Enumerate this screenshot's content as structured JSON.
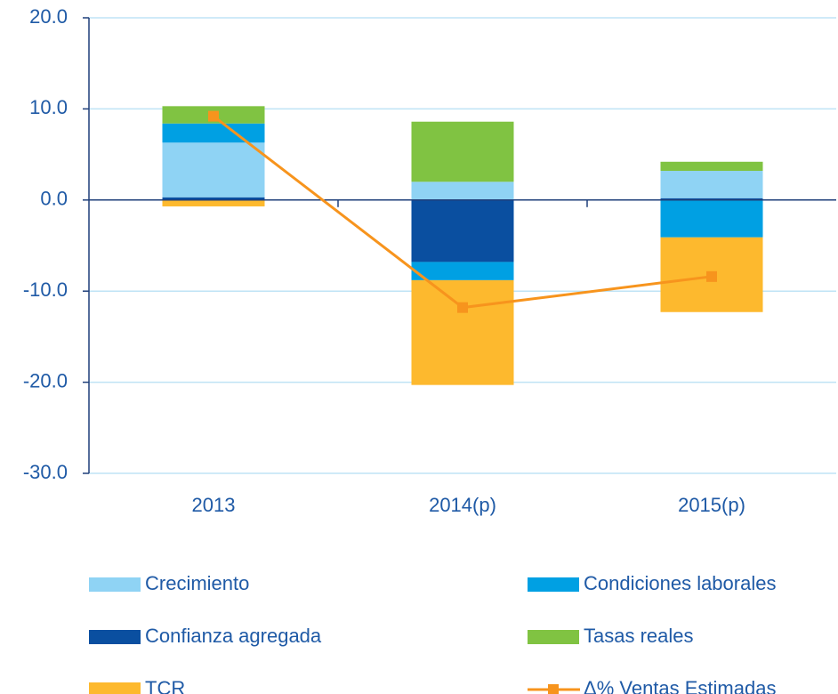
{
  "chart_data": {
    "type": "bar",
    "categories": [
      "2013",
      "2014(p)",
      "2015(p)"
    ],
    "series": [
      {
        "name": "Crecimiento",
        "color": "#8fd3f4",
        "values": [
          6.0,
          2.0,
          3.0
        ]
      },
      {
        "name": "Condiciones laborales",
        "color": "#00a0e3",
        "values": [
          2.1,
          -2.0,
          -4.1
        ]
      },
      {
        "name": "Confianza agregada",
        "color": "#0a4fa0",
        "values": [
          0.3,
          -6.8,
          0.2
        ]
      },
      {
        "name": "Tasas reales",
        "color": "#80c342",
        "values": [
          1.9,
          6.6,
          1.0
        ]
      },
      {
        "name": "TCR",
        "color": "#fdb92e",
        "values": [
          -0.7,
          -11.5,
          -8.2
        ]
      },
      {
        "name": "Δ% Ventas Estimadas",
        "color": "#f7941d",
        "type": "line",
        "values": [
          9.2,
          -11.8,
          -8.4
        ]
      }
    ],
    "ylim": [
      -30,
      20
    ],
    "yticks": [
      {
        "value": -30,
        "label": "-30.0"
      },
      {
        "value": -20,
        "label": "-20.0"
      },
      {
        "value": -10,
        "label": "-10.0"
      },
      {
        "value": 0,
        "label": "0.0"
      },
      {
        "value": 10,
        "label": "10.0"
      },
      {
        "value": 20,
        "label": "20.0"
      }
    ],
    "grid": true
  }
}
